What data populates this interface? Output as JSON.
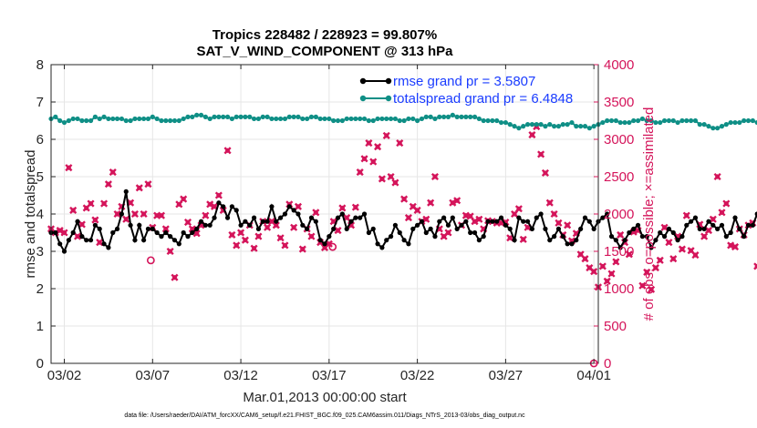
{
  "chart_data": {
    "type": "line",
    "title_line1": "Tropics 228482 / 228923 = 99.807%",
    "title_line2": "SAT_V_WIND_COMPONENT @ 313 hPa",
    "xlabel": "Mar.01,2013 00:00:00 start",
    "ylabel_left": "rmse and totalspread",
    "ylabel_right": "# of obs: o=possible; ×=assimilated",
    "left_ylim": [
      0,
      8
    ],
    "right_ylim": [
      0,
      4000
    ],
    "left_ticks": [
      "0",
      "1",
      "2",
      "3",
      "4",
      "5",
      "6",
      "7",
      "8"
    ],
    "right_ticks": [
      "0",
      "500",
      "1000",
      "1500",
      "2000",
      "2500",
      "3000",
      "3500",
      "4000"
    ],
    "x_tick_labels": [
      "03/02",
      "03/07",
      "03/12",
      "03/17",
      "03/22",
      "03/27",
      "04/01"
    ],
    "x_tick_days": [
      1,
      6,
      11,
      16,
      21,
      26,
      31
    ],
    "xlim_days": [
      0.25,
      31.25
    ],
    "legend": [
      {
        "label": "rmse grand pr = 3.5807",
        "color": "#000000"
      },
      {
        "label": "totalspread grand pr = 6.4848",
        "color": "#0f8f86"
      }
    ],
    "series": [
      {
        "name": "rmse",
        "color": "#000000",
        "points_per_day": 4,
        "start_day": 0.25,
        "values": [
          3.5,
          3.5,
          3.2,
          3.0,
          3.3,
          3.5,
          3.8,
          3.4,
          3.3,
          3.3,
          3.7,
          3.6,
          3.2,
          3.1,
          3.5,
          3.6,
          4.0,
          4.6,
          3.7,
          3.3,
          3.7,
          3.3,
          3.6,
          3.6,
          3.5,
          3.4,
          3.5,
          3.4,
          3.3,
          3.2,
          3.5,
          3.4,
          3.5,
          3.6,
          3.8,
          3.7,
          3.7,
          3.9,
          4.3,
          4.2,
          3.9,
          4.2,
          4.1,
          3.7,
          3.8,
          3.7,
          3.9,
          3.6,
          3.8,
          3.8,
          4.2,
          3.8,
          3.9,
          4.0,
          4.2,
          4.1,
          4.0,
          3.7,
          3.6,
          3.9,
          3.8,
          3.3,
          3.2,
          3.4,
          3.6,
          3.9,
          4.0,
          3.6,
          3.8,
          3.9,
          3.9,
          4.0,
          3.5,
          3.6,
          3.2,
          3.1,
          3.3,
          3.4,
          3.7,
          3.5,
          3.3,
          3.2,
          3.6,
          3.7,
          3.8,
          3.5,
          3.6,
          3.4,
          3.8,
          3.9,
          3.7,
          3.9,
          3.6,
          3.7,
          3.8,
          3.5,
          3.5,
          3.3,
          3.4,
          3.8,
          3.8,
          3.8,
          3.9,
          3.7,
          3.6,
          3.3,
          3.9,
          3.8,
          3.8,
          3.6,
          3.9,
          4.0,
          3.6,
          3.3,
          3.4,
          3.6,
          3.4,
          3.2,
          3.2,
          3.3,
          3.6,
          3.9,
          3.8,
          3.6,
          3.8,
          3.9,
          4.0,
          3.4,
          3.3,
          3.1,
          3.3,
          3.5,
          3.6,
          3.7,
          3.4,
          3.4,
          3.1,
          3.3,
          3.5,
          3.4,
          3.6,
          3.5,
          3.3,
          3.4,
          3.7,
          3.8,
          3.9,
          3.6,
          3.6,
          3.8,
          3.7,
          3.6,
          3.7,
          3.4,
          3.5,
          3.9,
          3.6,
          3.4,
          3.7,
          3.7,
          4.0,
          3.8,
          3.7,
          3.8,
          3.6,
          3.7,
          3.9,
          3.8,
          3.6,
          3.4,
          3.3,
          3.3
        ]
      },
      {
        "name": "totalspread",
        "color": "#0f8f86",
        "points_per_day": 4,
        "start_day": 0.25,
        "values": [
          6.55,
          6.6,
          6.5,
          6.45,
          6.5,
          6.55,
          6.55,
          6.5,
          6.5,
          6.5,
          6.6,
          6.55,
          6.6,
          6.55,
          6.55,
          6.55,
          6.55,
          6.5,
          6.5,
          6.55,
          6.55,
          6.55,
          6.55,
          6.6,
          6.55,
          6.5,
          6.5,
          6.5,
          6.5,
          6.5,
          6.55,
          6.6,
          6.6,
          6.65,
          6.65,
          6.6,
          6.55,
          6.6,
          6.6,
          6.6,
          6.6,
          6.55,
          6.6,
          6.6,
          6.6,
          6.6,
          6.55,
          6.55,
          6.6,
          6.6,
          6.55,
          6.55,
          6.55,
          6.55,
          6.6,
          6.6,
          6.6,
          6.55,
          6.55,
          6.6,
          6.6,
          6.55,
          6.55,
          6.55,
          6.5,
          6.5,
          6.5,
          6.55,
          6.55,
          6.55,
          6.55,
          6.55,
          6.5,
          6.5,
          6.55,
          6.55,
          6.55,
          6.55,
          6.55,
          6.5,
          6.5,
          6.55,
          6.55,
          6.5,
          6.55,
          6.6,
          6.6,
          6.55,
          6.6,
          6.6,
          6.6,
          6.65,
          6.6,
          6.6,
          6.6,
          6.6,
          6.6,
          6.55,
          6.5,
          6.5,
          6.5,
          6.5,
          6.45,
          6.45,
          6.4,
          6.35,
          6.3,
          6.35,
          6.4,
          6.4,
          6.4,
          6.4,
          6.35,
          6.4,
          6.35,
          6.35,
          6.4,
          6.4,
          6.45,
          6.35,
          6.35,
          6.35,
          6.3,
          6.35,
          6.4,
          6.45,
          6.5,
          6.5,
          6.5,
          6.45,
          6.45,
          6.45,
          6.5,
          6.5,
          6.55,
          6.5,
          6.5,
          6.45,
          6.45,
          6.5,
          6.5,
          6.5,
          6.45,
          6.5,
          6.5,
          6.5,
          6.5,
          6.4,
          6.4,
          6.35,
          6.3,
          6.3,
          6.35,
          6.4,
          6.45,
          6.45,
          6.45,
          6.5,
          6.5,
          6.5,
          6.45,
          6.45,
          6.5,
          6.45,
          6.5,
          6.5,
          6.5,
          6.5,
          6.5
        ]
      },
      {
        "name": "obs assimilated",
        "color": "#d4145a",
        "marker": "x",
        "points_per_day": 4,
        "start_day": 0.25,
        "values": [
          1800,
          1750,
          1780,
          1750,
          2620,
          2050,
          1700,
          1860,
          2080,
          2140,
          1920,
          1620,
          2140,
          2400,
          2560,
          2000,
          2100,
          1930,
          2150,
          2000,
          2350,
          2000,
          2400,
          1820,
          1980,
          1980,
          1800,
          1500,
          1150,
          2130,
          2200,
          1890,
          1800,
          1740,
          1850,
          1980,
          2130,
          2100,
          2250,
          2050,
          2850,
          1720,
          1580,
          1750,
          1650,
          1850,
          1540,
          1700,
          1900,
          1820,
          1900,
          1850,
          1680,
          1580,
          2130,
          1820,
          2100,
          1530,
          1800,
          1700,
          2020,
          1620,
          1550,
          1600,
          1900,
          1780,
          2080,
          1950,
          1850,
          2090,
          2560,
          2740,
          2950,
          2700,
          2900,
          2470,
          3050,
          2500,
          2420,
          2950,
          2200,
          1950,
          2100,
          2050,
          1900,
          1930,
          2150,
          2500,
          1800,
          1700,
          1750,
          2150,
          2180,
          1850,
          1980,
          1970,
          1900,
          1930,
          1800,
          1910,
          1900,
          1880,
          1880,
          1890,
          1680,
          2000,
          2070,
          1660,
          1820,
          3060,
          3170,
          2800,
          2550,
          2150,
          2000,
          1880,
          1720,
          1850,
          1640,
          1740,
          1460,
          1400,
          1280,
          1230,
          1020,
          1300,
          1100,
          1200,
          1360,
          1720,
          1620,
          1460,
          1760,
          1780,
          1040,
          1220,
          990,
          1280,
          1380,
          1820,
          1620,
          1400,
          1700,
          1530,
          1980,
          1510,
          1450,
          1860,
          1700,
          1780,
          1930,
          2500,
          2020,
          2140,
          1580,
          1560,
          1800,
          1720,
          1850,
          1880,
          1300,
          1250,
          1940,
          3000,
          3060,
          1860,
          1560,
          1700,
          1900,
          1600,
          1800,
          1750,
          2000,
          2060,
          2080,
          2020,
          2100
        ]
      },
      {
        "name": "obs possible",
        "color": "#d4145a",
        "marker": "o",
        "points": [
          {
            "day": 16.2,
            "value": 1560
          },
          {
            "day": 5.9,
            "value": 1380
          },
          {
            "day": 31.0,
            "value": 0
          }
        ]
      }
    ],
    "grid": true,
    "legend_position": "top-right"
  },
  "footer": {
    "text": "data file: /Users/raeder/DAI/ATM_forcXX/CAM6_setup/f.e21.FHIST_BGC.f09_025.CAM6assim.011/Diags_NTrS_2013-03/obs_diag_output.nc"
  }
}
